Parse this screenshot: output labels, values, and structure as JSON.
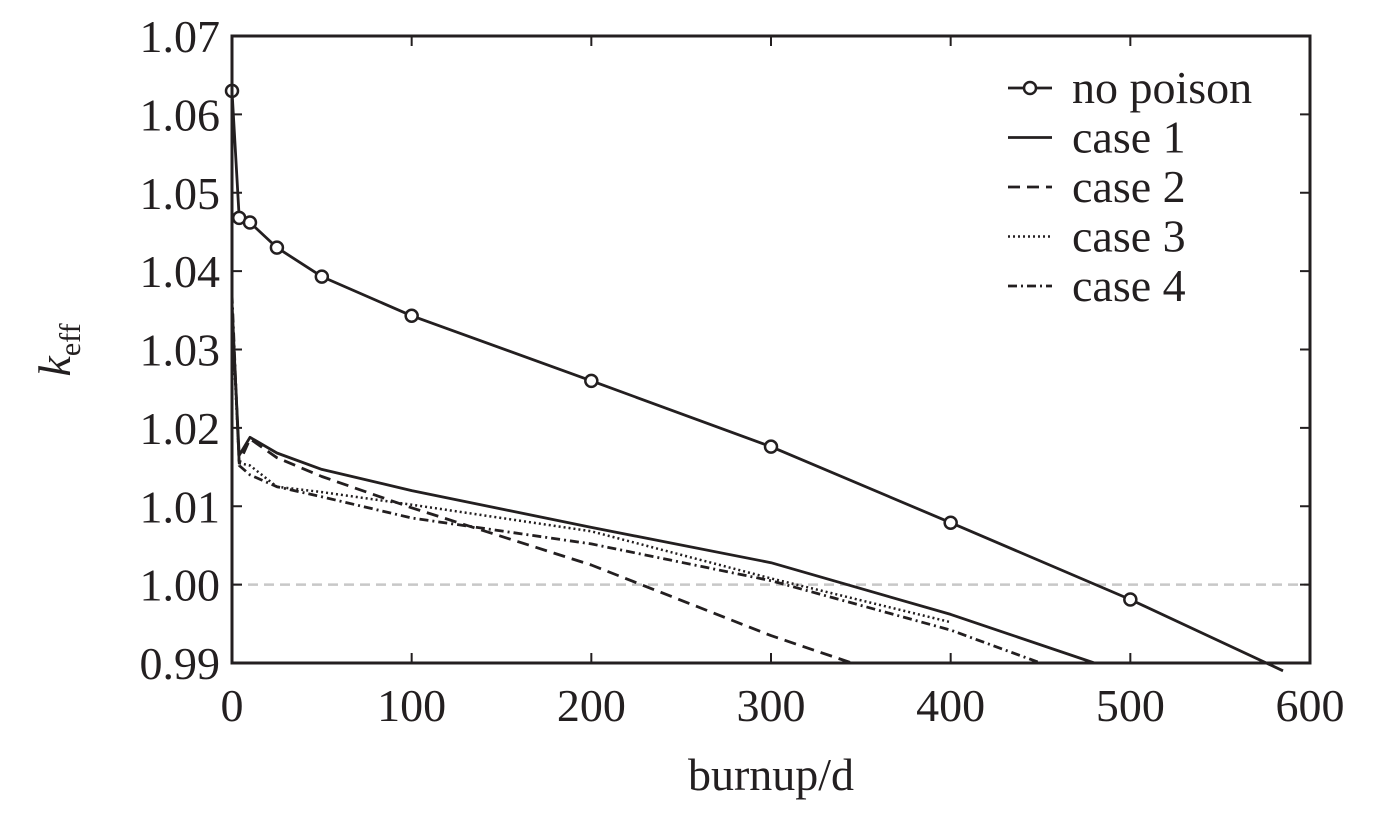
{
  "chart_data": {
    "type": "line",
    "xlabel": "burnup/d",
    "ylabel": {
      "main": "k",
      "sub": "eff"
    },
    "xlim": [
      0,
      600
    ],
    "ylim": [
      0.99,
      1.07
    ],
    "xticks": [
      0,
      100,
      200,
      300,
      400,
      500,
      600
    ],
    "xtick_labels": [
      "0",
      "100",
      "200",
      "300",
      "400",
      "500",
      "600"
    ],
    "yticks": [
      0.99,
      1.0,
      1.01,
      1.02,
      1.03,
      1.04,
      1.05,
      1.06,
      1.07
    ],
    "ytick_labels": [
      "0.99",
      "1.00",
      "1.01",
      "1.02",
      "1.03",
      "1.04",
      "1.05",
      "1.06",
      "1.07"
    ],
    "grid": false,
    "legend_position": "top-right",
    "reference_line": {
      "y": 1.0,
      "style": "dashed",
      "color": "#c8c8c8"
    },
    "series": [
      {
        "name": "no poison",
        "style": "solid-circle",
        "x": [
          0,
          4,
          10,
          25,
          50,
          100,
          200,
          300,
          400,
          500,
          585
        ],
        "y": [
          1.063,
          1.0468,
          1.0462,
          1.043,
          1.0393,
          1.0343,
          1.026,
          1.0176,
          1.0079,
          0.9981,
          0.989
        ]
      },
      {
        "name": "case 1",
        "style": "solid",
        "x": [
          0,
          4,
          10,
          25,
          50,
          100,
          200,
          300,
          400,
          480
        ],
        "y": [
          1.035,
          1.0165,
          1.0188,
          1.0168,
          1.0147,
          1.012,
          1.0073,
          1.0028,
          0.9962,
          0.99
        ]
      },
      {
        "name": "case 2",
        "style": "dashed",
        "x": [
          0,
          4,
          10,
          25,
          50,
          100,
          200,
          300,
          345
        ],
        "y": [
          1.036,
          1.0155,
          1.0186,
          1.0162,
          1.0138,
          1.0098,
          1.0025,
          0.9935,
          0.99
        ]
      },
      {
        "name": "case 3",
        "style": "dotted",
        "x": [
          0,
          4,
          10,
          25,
          50,
          100,
          200,
          300,
          400
        ],
        "y": [
          1.034,
          1.0155,
          1.0152,
          1.0125,
          1.0118,
          1.0102,
          1.0068,
          1.0008,
          0.9952
        ]
      },
      {
        "name": "case 4",
        "style": "dash-dot",
        "x": [
          0,
          4,
          10,
          25,
          50,
          100,
          200,
          300,
          400,
          450
        ],
        "y": [
          1.037,
          1.0152,
          1.014,
          1.0125,
          1.0112,
          1.0085,
          1.0052,
          1.0005,
          0.9942,
          0.99
        ]
      }
    ]
  }
}
